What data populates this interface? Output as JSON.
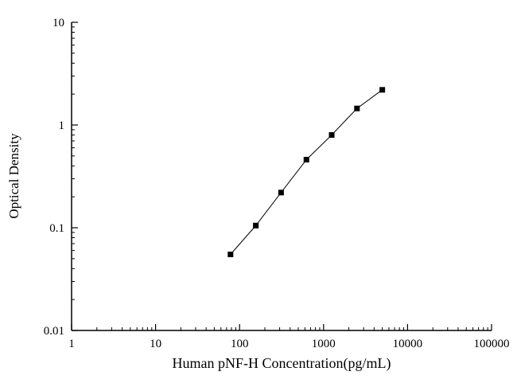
{
  "chart": {
    "xlabel": "Human pNF-H Concentration(pg/mL)",
    "ylabel": "Optical Density"
  },
  "chart_data": {
    "type": "scatter",
    "title": "",
    "xlabel": "Human pNF-H Concentration(pg/mL)",
    "ylabel": "Optical Density",
    "xscale": "log",
    "yscale": "log",
    "xlim": [
      1,
      100000
    ],
    "ylim": [
      0.01,
      10
    ],
    "x_ticks": [
      1,
      10,
      100,
      1000,
      10000,
      100000
    ],
    "x_tick_labels": [
      "1",
      "10",
      "100",
      "1000",
      "10000",
      "100000"
    ],
    "y_ticks": [
      0.01,
      0.1,
      1,
      10
    ],
    "y_tick_labels": [
      "0.01",
      "0.1",
      "1",
      "10"
    ],
    "grid": false,
    "legend": null,
    "marker": "filled-square",
    "marker_color": "#000000",
    "line_color": "#000000",
    "series": [
      {
        "name": "standard-curve",
        "x": [
          78,
          156,
          312,
          625,
          1250,
          2500,
          5000
        ],
        "y": [
          0.055,
          0.105,
          0.22,
          0.46,
          0.8,
          1.45,
          2.2
        ]
      }
    ]
  }
}
